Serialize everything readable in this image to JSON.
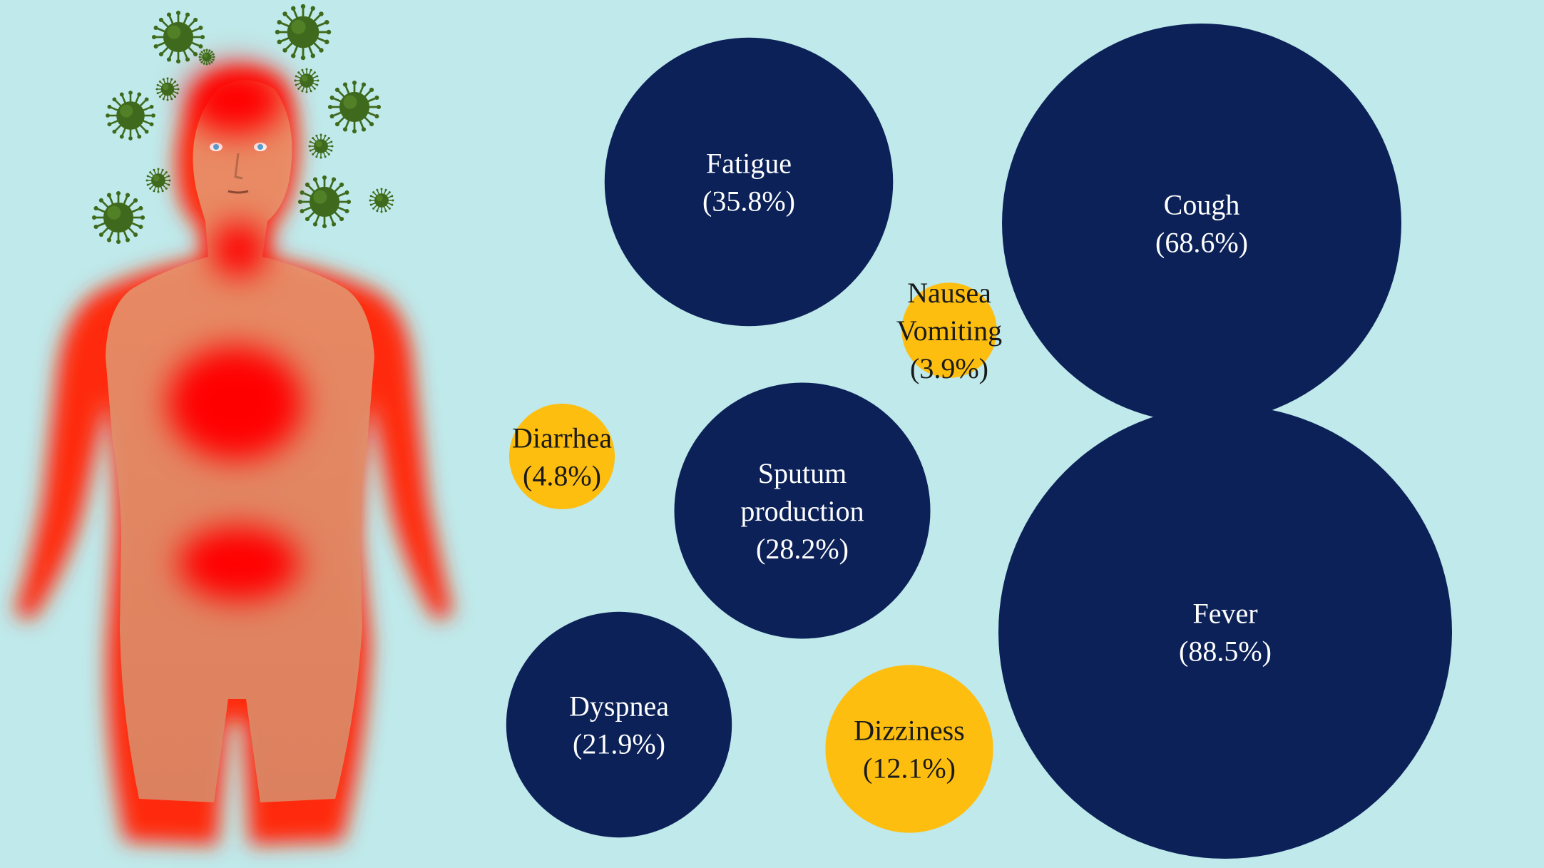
{
  "colors": {
    "background": "#bfe9ea",
    "major_symptom": "#0b2158",
    "minor_symptom": "#fdbe10",
    "major_text": "#ffffff",
    "minor_text": "#1a1a1a",
    "body_skin": "#e8906a",
    "body_hotspot": "#ff0000",
    "virus": "#3f6a1d"
  },
  "illustration": {
    "figure_icon": "human-body-figure",
    "virus_icon": "coronavirus-particle",
    "virus_count": 12
  },
  "chart_data": {
    "type": "bubble",
    "title": "",
    "legend": "none",
    "unit": "%",
    "series": [
      {
        "label": "Fever",
        "lines": [
          "Fever"
        ],
        "value": 88.5,
        "value_text": "(88.5%)",
        "group": "major"
      },
      {
        "label": "Cough",
        "lines": [
          "Cough"
        ],
        "value": 68.6,
        "value_text": "(68.6%)",
        "group": "major"
      },
      {
        "label": "Fatigue",
        "lines": [
          "Fatigue"
        ],
        "value": 35.8,
        "value_text": "(35.8%)",
        "group": "major"
      },
      {
        "label": "Sputum production",
        "lines": [
          "Sputum",
          "production"
        ],
        "value": 28.2,
        "value_text": "(28.2%)",
        "group": "major"
      },
      {
        "label": "Dyspnea",
        "lines": [
          "Dyspnea"
        ],
        "value": 21.9,
        "value_text": "(21.9%)",
        "group": "major"
      },
      {
        "label": "Dizziness",
        "lines": [
          "Dizziness"
        ],
        "value": 12.1,
        "value_text": "(12.1%)",
        "group": "minor"
      },
      {
        "label": "Diarrhea",
        "lines": [
          "Diarrhea"
        ],
        "value": 4.8,
        "value_text": "(4.8%)",
        "group": "minor"
      },
      {
        "label": "Nausea Vomiting",
        "lines": [
          "Nausea",
          "Vomiting"
        ],
        "value": 3.9,
        "value_text": "(3.9%)",
        "group": "minor"
      }
    ]
  }
}
